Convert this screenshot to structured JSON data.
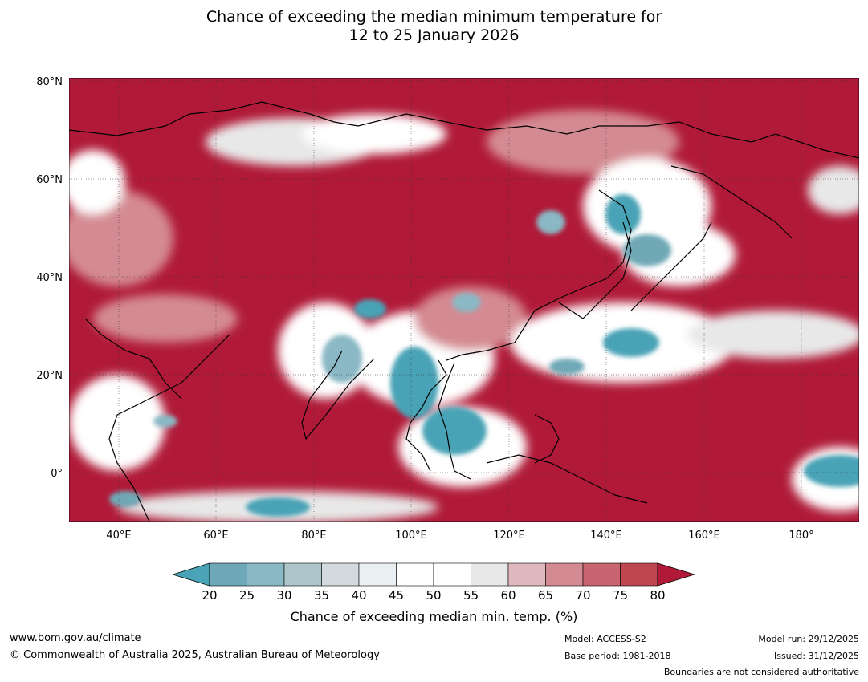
{
  "title_line1": "Chance of exceeding the median minimum temperature for",
  "title_line2": "12 to 25 January 2026",
  "lat_labels": [
    "80°N",
    "60°N",
    "40°N",
    "20°N",
    "0°"
  ],
  "lon_labels": [
    "40°E",
    "60°E",
    "80°E",
    "100°E",
    "120°E",
    "140°E",
    "160°E",
    "180°"
  ],
  "legend": {
    "title": "Chance of exceeding median min. temp. (%)",
    "ticks": [
      "20",
      "25",
      "30",
      "35",
      "40",
      "45",
      "50",
      "55",
      "60",
      "65",
      "70",
      "75",
      "80"
    ],
    "colors": [
      "#4aa3b6",
      "#6fa8b6",
      "#8ab8c4",
      "#adc6cc",
      "#d3dadd",
      "#eaf0f2",
      "#ffffff",
      "#ffffff",
      "#e8e8e8",
      "#dfb8bd",
      "#d48a92",
      "#c86570",
      "#bd4650",
      "#b01a38"
    ]
  },
  "footer": {
    "url": "www.bom.gov.au/climate",
    "copyright": "© Commonwealth of Australia 2025, Australian Bureau of Meteorology",
    "model": "Model: ACCESS-S2",
    "base_period": "Base period: 1981-2018",
    "model_run": "Model run: 29/12/2025",
    "issued": "Issued: 31/12/2025",
    "disclaimer": "Boundaries are not considered authoritative"
  }
}
